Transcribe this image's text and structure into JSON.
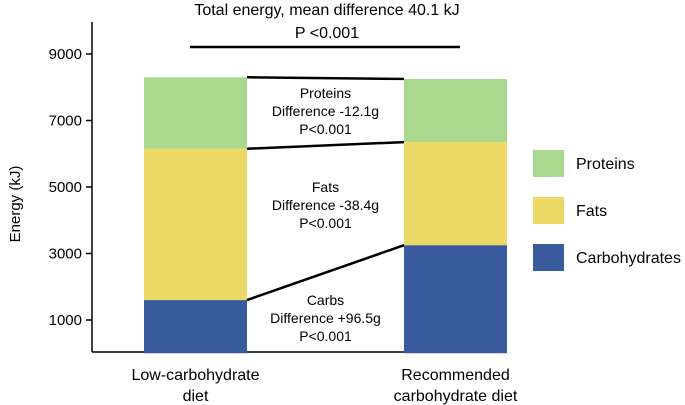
{
  "chart_data": {
    "type": "bar",
    "stacked": true,
    "title": "Total energy, mean difference 40.1 kJ",
    "title_pvalue": "P <0.001",
    "ylabel": "Energy (kJ)",
    "xlabel": "",
    "ylim": [
      0,
      9500
    ],
    "yticks": [
      1000,
      3000,
      5000,
      7000,
      9000
    ],
    "ytick_labels": [
      "1000",
      "3000",
      "5000",
      "7000",
      "9000"
    ],
    "grid": false,
    "categories": [
      "Low-carbohydrate diet",
      "Recommended carbohydrate diet"
    ],
    "category_label_lines": [
      [
        "Low-carbohydrate",
        "diet"
      ],
      [
        "Recommended",
        "carbohydrate diet"
      ]
    ],
    "series": [
      {
        "name": "Carbohydrates",
        "color": "#3a5a9e",
        "values": [
          1600,
          3250
        ]
      },
      {
        "name": "Fats",
        "color": "#ecd865",
        "values": [
          4550,
          3100
        ]
      },
      {
        "name": "Proteins",
        "color": "#aad88f",
        "values": [
          2150,
          1900
        ]
      }
    ],
    "legend_placement": "right",
    "annotations": [
      {
        "series": "Proteins",
        "lines": [
          "Proteins",
          "Difference -12.1g",
          "P<0.001"
        ]
      },
      {
        "series": "Fats",
        "lines": [
          "Fats",
          "Difference -38.4g",
          "P<0.001"
        ]
      },
      {
        "series": "Carbohydrates",
        "lines": [
          "Carbs",
          "Difference +96.5g",
          "P<0.001"
        ]
      }
    ]
  }
}
